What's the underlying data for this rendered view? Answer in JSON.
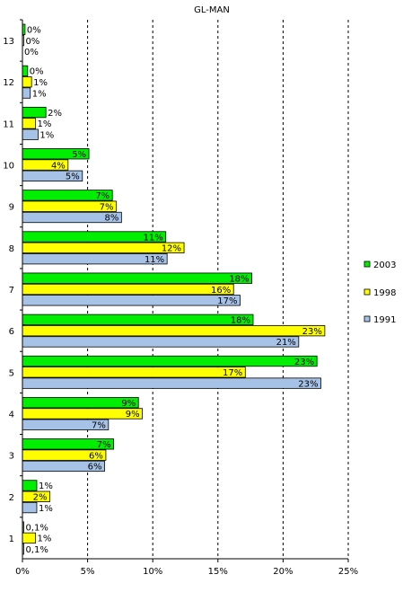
{
  "chart_data": {
    "type": "bar",
    "orientation": "horizontal",
    "title": "GL-MAN",
    "xlabel": "",
    "ylabel": "",
    "xlim": [
      0,
      25
    ],
    "x_ticks": [
      "0%",
      "5%",
      "10%",
      "15%",
      "20%",
      "25%"
    ],
    "x_tick_values": [
      0,
      5,
      10,
      15,
      20,
      25
    ],
    "grid": "vertical dashed",
    "legend": "right",
    "categories": [
      "1",
      "2",
      "3",
      "4",
      "5",
      "6",
      "7",
      "8",
      "9",
      "10",
      "11",
      "12",
      "13"
    ],
    "series": [
      {
        "name": "2003",
        "color": "#00ee00",
        "values": [
          0.1,
          1.1,
          7.0,
          8.9,
          22.6,
          17.7,
          17.6,
          11.0,
          6.9,
          5.1,
          1.8,
          0.4,
          0.2
        ],
        "labels": [
          "0,1%",
          "1%",
          "7%",
          "9%",
          "23%",
          "18%",
          "18%",
          "11%",
          "7%",
          "5%",
          "2%",
          "0%",
          "0%"
        ]
      },
      {
        "name": "1998",
        "color": "#ffff00",
        "values": [
          1.0,
          2.1,
          6.4,
          9.2,
          17.1,
          23.2,
          16.2,
          12.4,
          7.2,
          3.5,
          1.0,
          0.7,
          0.1
        ],
        "labels": [
          "1%",
          "2%",
          "6%",
          "9%",
          "17%",
          "23%",
          "16%",
          "12%",
          "7%",
          "4%",
          "1%",
          "1%",
          "0%"
        ]
      },
      {
        "name": "1991",
        "color": "#a6c2e6",
        "values": [
          0.1,
          1.1,
          6.3,
          6.6,
          22.9,
          21.2,
          16.7,
          11.1,
          7.6,
          4.6,
          1.2,
          0.6,
          0.0
        ],
        "labels": [
          "0,1%",
          "1%",
          "6%",
          "7%",
          "23%",
          "21%",
          "17%",
          "11%",
          "8%",
          "5%",
          "1%",
          "1%",
          "0%"
        ]
      }
    ]
  }
}
